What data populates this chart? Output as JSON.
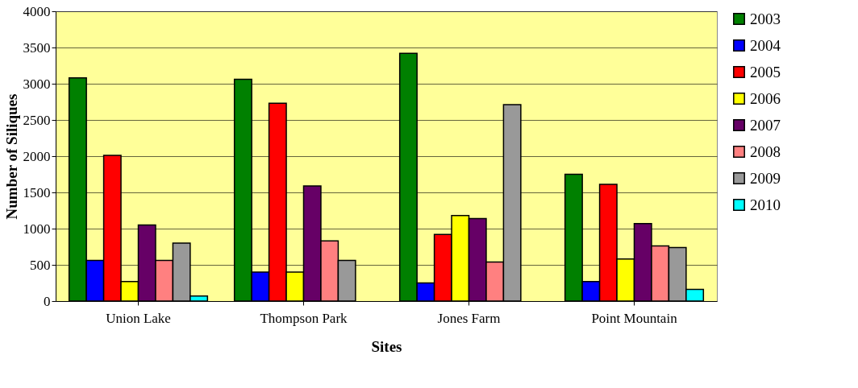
{
  "chart_data": {
    "type": "bar",
    "xlabel": "Sites",
    "ylabel": "Number of Siliques",
    "categories": [
      "Union Lake",
      "Thompson Park",
      "Jones Farm",
      "Point Mountain"
    ],
    "series": [
      {
        "name": "2003",
        "color": "#008000",
        "values": [
          3080,
          3060,
          3420,
          1750
        ]
      },
      {
        "name": "2004",
        "color": "#0000ff",
        "values": [
          560,
          400,
          250,
          270
        ]
      },
      {
        "name": "2005",
        "color": "#ff0000",
        "values": [
          2010,
          2730,
          920,
          1610
        ]
      },
      {
        "name": "2006",
        "color": "#ffff00",
        "values": [
          270,
          400,
          1180,
          580
        ]
      },
      {
        "name": "2007",
        "color": "#660066",
        "values": [
          1050,
          1590,
          1140,
          1070
        ]
      },
      {
        "name": "2008",
        "color": "#ff8080",
        "values": [
          560,
          830,
          540,
          760
        ]
      },
      {
        "name": "2009",
        "color": "#999999",
        "values": [
          800,
          560,
          2710,
          740
        ]
      },
      {
        "name": "2010",
        "color": "#00ffff",
        "values": [
          70,
          null,
          null,
          160
        ]
      }
    ],
    "ylim": [
      0,
      4000
    ],
    "yticks": [
      0,
      500,
      1000,
      1500,
      2000,
      2500,
      3000,
      3500,
      4000
    ],
    "grid": "y",
    "legend": "right"
  }
}
